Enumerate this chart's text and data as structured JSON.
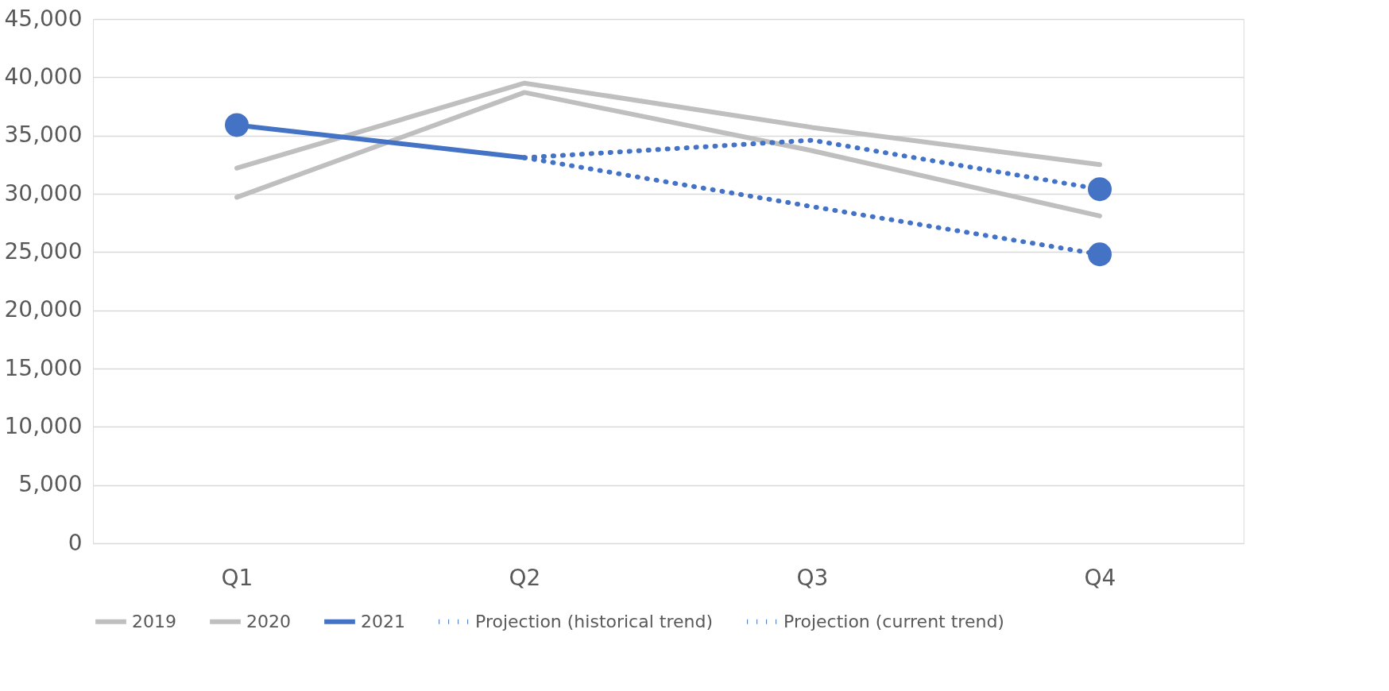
{
  "chart_data": {
    "type": "line",
    "categories": [
      "Q1",
      "Q2",
      "Q3",
      "Q4"
    ],
    "series": [
      {
        "name": "2019",
        "color": "#bfbfbf",
        "line_style": "solid",
        "values": [
          32200,
          39500,
          35700,
          32500
        ]
      },
      {
        "name": "2020",
        "color": "#bfbfbf",
        "line_style": "solid",
        "values": [
          29700,
          38700,
          33700,
          28100
        ]
      },
      {
        "name": "2021",
        "color": "#4472c4",
        "line_style": "solid",
        "values": [
          35900,
          33100,
          null,
          null
        ]
      },
      {
        "name": "Projection (historical trend)",
        "color": "#4472c4",
        "line_style": "dotted",
        "values": [
          null,
          33100,
          34600,
          30400
        ]
      },
      {
        "name": "Projection (current trend)",
        "color": "#4472c4",
        "line_style": "dotted",
        "values": [
          null,
          33100,
          28900,
          24800
        ]
      },
      {
        "type": "scatter",
        "marker": "circle",
        "color": "#4472c4",
        "values": [
          35900,
          null,
          null,
          30400
        ]
      },
      {
        "type": "scatter",
        "marker": "circle",
        "color": "#4472c4",
        "values": [
          null,
          null,
          null,
          24800
        ]
      }
    ],
    "ylim": [
      0,
      45000
    ],
    "yticks": [
      0,
      {
        "value": 5000,
        "label": "5,000"
      },
      {
        "value": 10000,
        "label": "10,000"
      },
      {
        "value": 15000,
        "label": "15,000"
      },
      {
        "value": 20000,
        "label": "20,000"
      },
      {
        "value": 25000,
        "label": "25,000"
      },
      {
        "value": 30000,
        "label": "30,000"
      },
      {
        "value": 35000,
        "label": "35,000"
      },
      {
        "value": 40000,
        "label": "40,000"
      },
      {
        "value": 45000,
        "label": "45,000"
      }
    ],
    "grid": "y",
    "legend": "bottom"
  }
}
